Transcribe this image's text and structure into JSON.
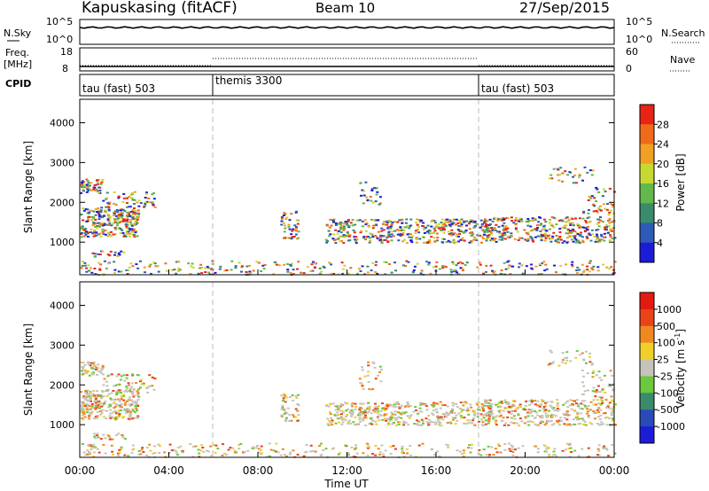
{
  "header": {
    "radar": "Kapuskasing (fitACF)",
    "beam": "Beam 10",
    "date": "27/Sep/2015"
  },
  "panels": {
    "nsky": {
      "label": "N.Sky",
      "ticks": [
        "10^5",
        "10^0"
      ]
    },
    "nsearch": {
      "label": "N.Search",
      "ticks": [
        "10^5",
        "10^0"
      ]
    },
    "freq": {
      "label_line1": "Freq.",
      "label_line2": "[MHz]",
      "ticks": [
        "18",
        "8"
      ]
    },
    "nave": {
      "label": "Nave",
      "ticks": [
        "60",
        "0"
      ]
    },
    "cpid": {
      "label": "CPID",
      "segments": [
        "tau (fast) 503",
        "themis 3300",
        "tau (fast) 503"
      ]
    }
  },
  "power_scale": {
    "label": "Power [dB]",
    "ticks": [
      "28",
      "24",
      "20",
      "16",
      "12",
      "8",
      "4"
    ],
    "colors": [
      "#1c1cd8",
      "#2e5ab8",
      "#3a8a6c",
      "#62b84a",
      "#c8d832",
      "#f0a024",
      "#f06a1a",
      "#e82416"
    ]
  },
  "velocity_scale": {
    "label": "Velocity [m s",
    "label_sup": "-1",
    "label_end": "]",
    "ticks": [
      "1000",
      "500",
      "100",
      "25",
      "-25",
      "-100",
      "-500",
      "-1000"
    ],
    "colors": [
      "#1c1cd8",
      "#2a4ab8",
      "#3a8a6c",
      "#6cc83c",
      "#c4c4bc",
      "#f0d028",
      "#f08820",
      "#e84418",
      "#e41a12"
    ]
  },
  "chart_data": [
    {
      "type": "heatmap",
      "title": "Power",
      "xlabel": "Time UT",
      "ylabel": "Slant Range [km]",
      "x_ticks": [
        "00:00",
        "04:00",
        "08:00",
        "12:00",
        "16:00",
        "20:00",
        "00:00"
      ],
      "xlim_hours": [
        0,
        24
      ],
      "y_ticks": [
        1000,
        2000,
        3000,
        4000
      ],
      "ylim": [
        180,
        4590
      ],
      "mode_boundaries_hours": [
        6,
        18
      ]
    },
    {
      "type": "heatmap",
      "title": "Velocity",
      "xlabel": "Time UT",
      "ylabel": "Slant Range [km]",
      "x_ticks": [
        "00:00",
        "04:00",
        "08:00",
        "12:00",
        "16:00",
        "20:00",
        "00:00"
      ],
      "xlim_hours": [
        0,
        24
      ],
      "y_ticks": [
        1000,
        2000,
        3000,
        4000
      ],
      "ylim": [
        180,
        4590
      ],
      "mode_boundaries_hours": [
        6,
        18
      ]
    }
  ]
}
